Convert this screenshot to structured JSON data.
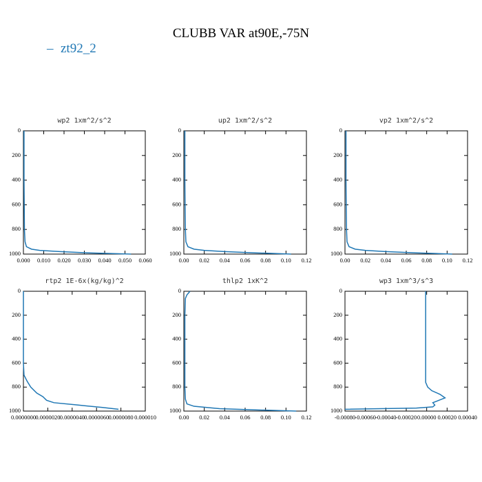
{
  "title": "CLUBB VAR at90E,-75N",
  "legend": {
    "label": "zt92_2",
    "color": "#1f77b4"
  },
  "chart_data": [
    {
      "type": "line",
      "title": "wp2  1xm^2/s^2",
      "xlim": [
        0,
        0.06
      ],
      "ylim": [
        1000,
        0
      ],
      "xticks": [
        {
          "value": 0,
          "label": "0.000"
        },
        {
          "value": 0.01,
          "label": "0.010"
        },
        {
          "value": 0.02,
          "label": "0.020"
        },
        {
          "value": 0.03,
          "label": "0.030"
        },
        {
          "value": 0.04,
          "label": "0.040"
        },
        {
          "value": 0.05,
          "label": "0.050"
        },
        {
          "value": 0.06,
          "label": "0.060"
        }
      ],
      "yticks": [
        0,
        200,
        400,
        600,
        800,
        1000
      ],
      "series": [
        {
          "color": "#1f77b4",
          "x": [
            0.0003,
            0.0003,
            0.0003,
            0.0004,
            0.0005,
            0.0008,
            0.0015,
            0.004,
            0.008,
            0.018,
            0.032,
            0.053
          ],
          "y": [
            0,
            200,
            400,
            600,
            800,
            900,
            940,
            960,
            970,
            980,
            990,
            1000
          ]
        }
      ]
    },
    {
      "type": "line",
      "title": "up2  1xm^2/s^2",
      "xlim": [
        0,
        0.12
      ],
      "ylim": [
        1000,
        0
      ],
      "xticks": [
        {
          "value": 0,
          "label": "0.00"
        },
        {
          "value": 0.02,
          "label": "0.02"
        },
        {
          "value": 0.04,
          "label": "0.04"
        },
        {
          "value": 0.06,
          "label": "0.06"
        },
        {
          "value": 0.08,
          "label": "0.08"
        },
        {
          "value": 0.1,
          "label": "0.10"
        },
        {
          "value": 0.12,
          "label": "0.12"
        }
      ],
      "yticks": [
        0,
        200,
        400,
        600,
        800,
        1000
      ],
      "series": [
        {
          "color": "#1f77b4",
          "x": [
            0.001,
            0.001,
            0.001,
            0.0012,
            0.0015,
            0.002,
            0.004,
            0.01,
            0.02,
            0.04,
            0.07,
            0.105
          ],
          "y": [
            0,
            200,
            400,
            600,
            800,
            900,
            940,
            960,
            970,
            980,
            990,
            1000
          ]
        }
      ]
    },
    {
      "type": "line",
      "title": "vp2  1xm^2/s^2",
      "xlim": [
        0,
        0.12
      ],
      "ylim": [
        1000,
        0
      ],
      "xticks": [
        {
          "value": 0,
          "label": "0.00"
        },
        {
          "value": 0.02,
          "label": "0.02"
        },
        {
          "value": 0.04,
          "label": "0.04"
        },
        {
          "value": 0.06,
          "label": "0.06"
        },
        {
          "value": 0.08,
          "label": "0.08"
        },
        {
          "value": 0.1,
          "label": "0.10"
        },
        {
          "value": 0.12,
          "label": "0.12"
        }
      ],
      "yticks": [
        0,
        200,
        400,
        600,
        800,
        1000
      ],
      "series": [
        {
          "color": "#1f77b4",
          "x": [
            0.001,
            0.001,
            0.001,
            0.0012,
            0.0015,
            0.002,
            0.004,
            0.01,
            0.02,
            0.04,
            0.07,
            0.105
          ],
          "y": [
            0,
            200,
            400,
            600,
            800,
            900,
            940,
            960,
            970,
            980,
            990,
            1000
          ]
        }
      ]
    },
    {
      "type": "line",
      "title": "rtp2  1E-6x(kg/kg)^2",
      "xlim": [
        0,
        1e-05
      ],
      "ylim": [
        1000,
        0
      ],
      "xticks": [
        {
          "value": 0,
          "label": "0.0000000"
        },
        {
          "value": 2e-06,
          "label": "0.0000020"
        },
        {
          "value": 4e-06,
          "label": "0.0000040"
        },
        {
          "value": 6e-06,
          "label": "0.0000060"
        },
        {
          "value": 8e-06,
          "label": "0.0000080"
        },
        {
          "value": 1e-05,
          "label": "0.000010"
        }
      ],
      "yticks": [
        0,
        200,
        400,
        600,
        800,
        1000
      ],
      "series": [
        {
          "color": "#1f77b4",
          "x": [
            0,
            0,
            0,
            0,
            5e-08,
            3e-07,
            6e-07,
            1.1e-06,
            1.6e-06,
            1.9e-06,
            2.5e-06,
            4.5e-06,
            6.5e-06,
            7.8e-06
          ],
          "y": [
            0,
            200,
            400,
            600,
            700,
            750,
            800,
            850,
            880,
            910,
            930,
            950,
            970,
            985
          ]
        }
      ]
    },
    {
      "type": "line",
      "title": "thlp2  1xK^2",
      "xlim": [
        0,
        0.12
      ],
      "ylim": [
        1000,
        0
      ],
      "xticks": [
        {
          "value": 0,
          "label": "0.00"
        },
        {
          "value": 0.02,
          "label": "0.02"
        },
        {
          "value": 0.04,
          "label": "0.04"
        },
        {
          "value": 0.06,
          "label": "0.06"
        },
        {
          "value": 0.08,
          "label": "0.08"
        },
        {
          "value": 0.1,
          "label": "0.10"
        },
        {
          "value": 0.12,
          "label": "0.12"
        }
      ],
      "yticks": [
        0,
        200,
        400,
        600,
        800,
        1000
      ],
      "series": [
        {
          "color": "#1f77b4",
          "x": [
            0.006,
            0.003,
            0.0015,
            0.001,
            0.001,
            0.001,
            0.001,
            0.0015,
            0.003,
            0.01,
            0.035,
            0.07,
            0.11
          ],
          "y": [
            0,
            30,
            60,
            200,
            400,
            600,
            800,
            900,
            940,
            960,
            980,
            990,
            1000
          ]
        }
      ]
    },
    {
      "type": "line",
      "title": "wp3  1xm^3/s^3",
      "xlim": [
        -0.0008,
        0.0004
      ],
      "ylim": [
        1000,
        0
      ],
      "xticks": [
        {
          "value": -0.0008,
          "label": "-0.00080"
        },
        {
          "value": -0.0006,
          "label": "-0.00060"
        },
        {
          "value": -0.0004,
          "label": "-0.00040"
        },
        {
          "value": -0.0002,
          "label": "-0.00020"
        },
        {
          "value": 0,
          "label": "0.00000"
        },
        {
          "value": 0.0002,
          "label": "0.00020"
        },
        {
          "value": 0.0004,
          "label": "0.00040"
        }
      ],
      "yticks": [
        0,
        200,
        400,
        600,
        800,
        1000
      ],
      "series": [
        {
          "color": "#1f77b4",
          "x": [
            -1e-05,
            -1e-05,
            -1e-05,
            -1e-05,
            -1e-05,
            1e-05,
            5e-05,
            0.00013,
            0.00018,
            0.00012,
            6e-05,
            8e-05,
            6e-05,
            -0.0001,
            -0.0008
          ],
          "y": [
            0,
            200,
            400,
            600,
            760,
            800,
            830,
            860,
            890,
            910,
            930,
            950,
            965,
            975,
            985
          ]
        }
      ]
    }
  ]
}
